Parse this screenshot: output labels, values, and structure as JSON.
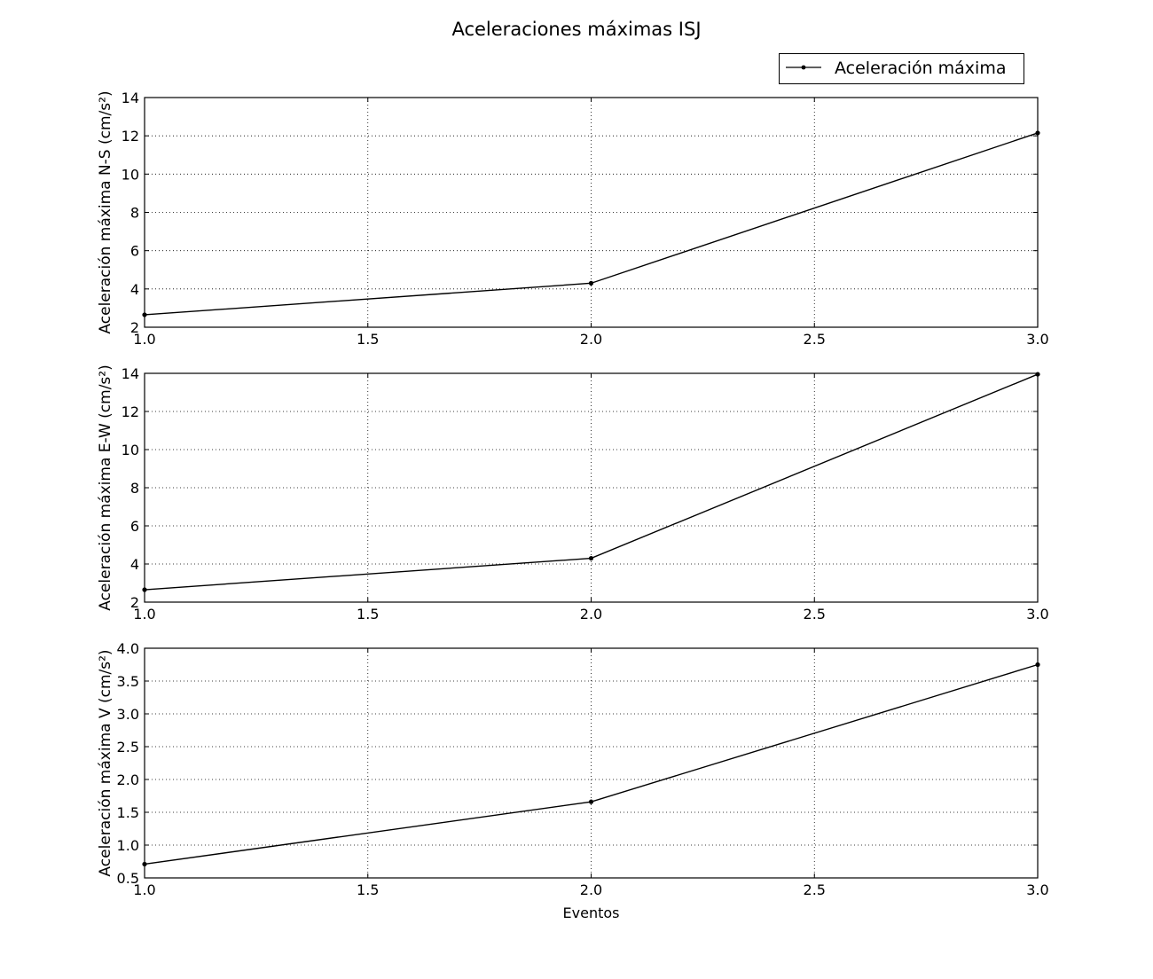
{
  "figure": {
    "title": "Aceleraciones máximas ISJ"
  },
  "legend": {
    "label": "Aceleración máxima",
    "placement": "top-right, above first subplot"
  },
  "colors": {
    "line": "#000000",
    "grid": "#000000",
    "background": "#ffffff"
  },
  "chart_data": [
    {
      "type": "line",
      "title": "",
      "xlabel": "",
      "ylabel": "Aceleración máxima N-S (cm/s²)",
      "x": [
        1.0,
        2.0,
        3.0
      ],
      "series": [
        {
          "name": "Aceleración máxima",
          "values": [
            2.65,
            4.3,
            12.15
          ]
        }
      ],
      "xlim": [
        1.0,
        3.0
      ],
      "ylim": [
        2,
        14
      ],
      "xticks": [
        "1.0",
        "1.5",
        "2.0",
        "2.5",
        "3.0"
      ],
      "yticks": [
        "2",
        "4",
        "6",
        "8",
        "10",
        "12",
        "14"
      ],
      "grid": true
    },
    {
      "type": "line",
      "title": "",
      "xlabel": "",
      "ylabel": "Aceleración máxima E-W (cm/s²)",
      "x": [
        1.0,
        2.0,
        3.0
      ],
      "series": [
        {
          "name": "Aceleración máxima",
          "values": [
            2.65,
            4.3,
            13.95
          ]
        }
      ],
      "xlim": [
        1.0,
        3.0
      ],
      "ylim": [
        2,
        14
      ],
      "xticks": [
        "1.0",
        "1.5",
        "2.0",
        "2.5",
        "3.0"
      ],
      "yticks": [
        "2",
        "4",
        "6",
        "8",
        "10",
        "12",
        "14"
      ],
      "grid": true
    },
    {
      "type": "line",
      "title": "",
      "xlabel": "Eventos",
      "ylabel": "Aceleración máxima V (cm/s²)",
      "x": [
        1.0,
        2.0,
        3.0
      ],
      "series": [
        {
          "name": "Aceleración máxima",
          "values": [
            0.71,
            1.66,
            3.75
          ]
        }
      ],
      "xlim": [
        1.0,
        3.0
      ],
      "ylim": [
        0.5,
        4.0
      ],
      "xticks": [
        "1.0",
        "1.5",
        "2.0",
        "2.5",
        "3.0"
      ],
      "yticks": [
        "0.5",
        "1.0",
        "1.5",
        "2.0",
        "2.5",
        "3.0",
        "3.5",
        "4.0"
      ],
      "grid": true
    }
  ]
}
